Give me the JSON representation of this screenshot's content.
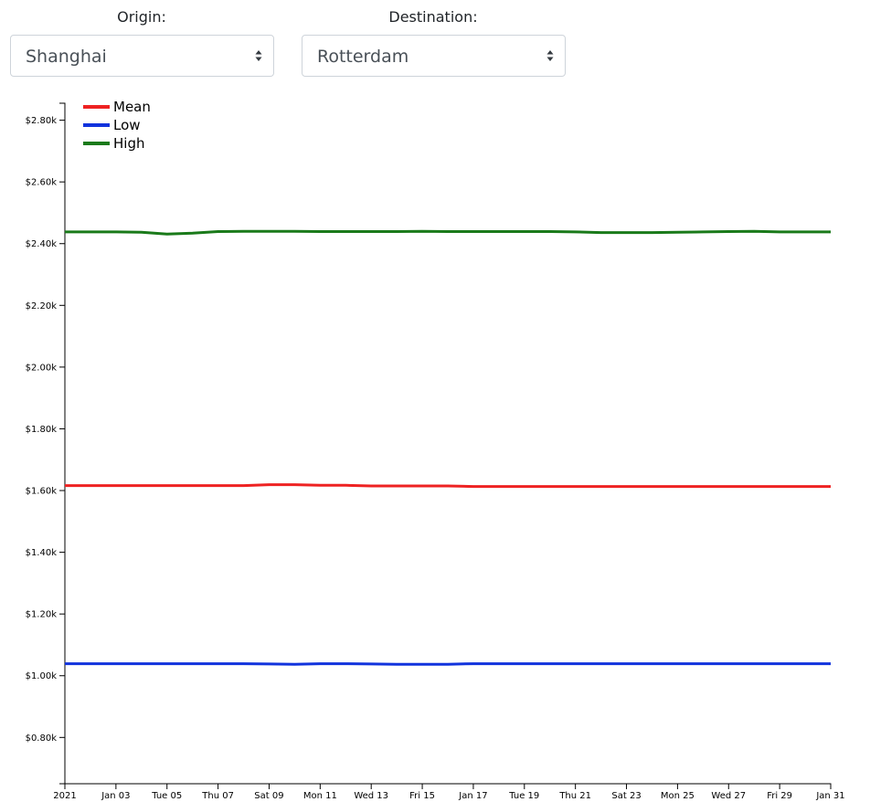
{
  "origin": {
    "label": "Origin:",
    "value": "Shanghai"
  },
  "destination": {
    "label": "Destination:",
    "value": "Rotterdam"
  },
  "chart_data": {
    "type": "line",
    "x": [
      "2021-01-01",
      "2021-01-02",
      "2021-01-03",
      "2021-01-04",
      "2021-01-05",
      "2021-01-06",
      "2021-01-07",
      "2021-01-08",
      "2021-01-09",
      "2021-01-10",
      "2021-01-11",
      "2021-01-12",
      "2021-01-13",
      "2021-01-14",
      "2021-01-15",
      "2021-01-16",
      "2021-01-17",
      "2021-01-18",
      "2021-01-19",
      "2021-01-20",
      "2021-01-21",
      "2021-01-22",
      "2021-01-23",
      "2021-01-24",
      "2021-01-25",
      "2021-01-26",
      "2021-01-27",
      "2021-01-28",
      "2021-01-29",
      "2021-01-30",
      "2021-01-31"
    ],
    "x_tick_labels": [
      "2021",
      "Jan 03",
      "Tue 05",
      "Thu 07",
      "Sat 09",
      "Mon 11",
      "Wed 13",
      "Fri 15",
      "Jan 17",
      "Tue 19",
      "Thu 21",
      "Sat 23",
      "Mon 25",
      "Wed 27",
      "Fri 29",
      "Jan 31"
    ],
    "y_ticks": [
      800,
      1000,
      1200,
      1400,
      1600,
      1800,
      2000,
      2200,
      2400,
      2600,
      2800
    ],
    "y_tick_labels": [
      "$0.80k",
      "$1.00k",
      "$1.20k",
      "$1.40k",
      "$1.60k",
      "$1.80k",
      "$2.00k",
      "$2.20k",
      "$2.40k",
      "$2.60k",
      "$2.80k"
    ],
    "ylim": [
      650,
      2855
    ],
    "grid": false,
    "legend_position": "top-left",
    "series": [
      {
        "name": "Mean",
        "color": "#ee2222",
        "values": [
          1616,
          1616,
          1616,
          1616,
          1616,
          1616,
          1616,
          1616,
          1619,
          1619,
          1617,
          1617,
          1615,
          1615,
          1615,
          1615,
          1613,
          1613,
          1613,
          1613,
          1613,
          1613,
          1613,
          1613,
          1613,
          1613,
          1613,
          1613,
          1613,
          1613,
          1613
        ]
      },
      {
        "name": "Low",
        "color": "#1133dd",
        "values": [
          1039,
          1039,
          1039,
          1039,
          1039,
          1039,
          1039,
          1039,
          1038,
          1037,
          1039,
          1039,
          1038,
          1037,
          1037,
          1037,
          1039,
          1039,
          1039,
          1039,
          1039,
          1039,
          1039,
          1039,
          1039,
          1039,
          1039,
          1039,
          1039,
          1039,
          1039
        ]
      },
      {
        "name": "High",
        "color": "#1a7a1a",
        "values": [
          2438,
          2438,
          2438,
          2437,
          2431,
          2434,
          2439,
          2440,
          2440,
          2440,
          2439,
          2439,
          2439,
          2439,
          2440,
          2439,
          2439,
          2439,
          2439,
          2439,
          2438,
          2436,
          2436,
          2436,
          2437,
          2438,
          2439,
          2440,
          2438,
          2438,
          2438
        ]
      }
    ]
  }
}
